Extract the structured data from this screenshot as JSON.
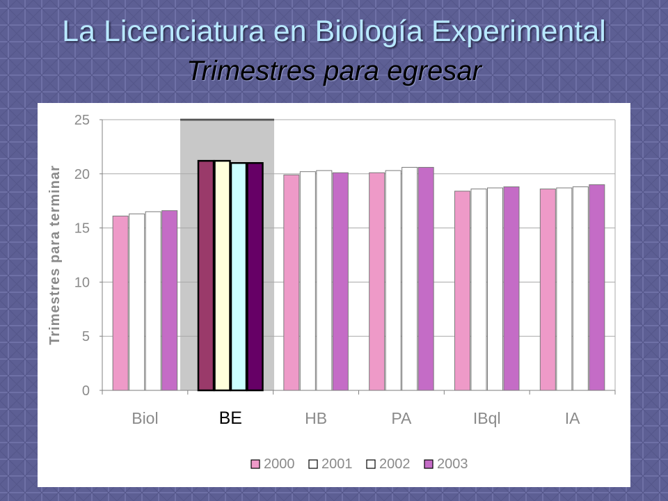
{
  "slide": {
    "title": "La Licenciatura en Biología Experimental",
    "subtitle": "Trimestres para egresar"
  },
  "colors": {
    "background": "#5d5f94",
    "title": "#b8e8ff",
    "highlight_band": "#c8c8c8",
    "series_2000": "#ee9ac8",
    "series_2001": "#ffffff",
    "series_2002": "#ffffff",
    "series_2003": "#c46cc6",
    "be_2000": "#9a3a6a",
    "be_2001": "#ffffdc",
    "be_2002": "#ccffff",
    "be_2003": "#660066"
  },
  "chart_data": {
    "type": "bar",
    "ylabel": "Trimestres para terminar",
    "xlabel": "",
    "ylim": [
      0,
      25
    ],
    "yticks": [
      "0",
      "5",
      "10",
      "15",
      "20",
      "25"
    ],
    "grid": true,
    "legend_position": "bottom",
    "highlighted_category": "BE",
    "categories": [
      "Biol",
      "BE",
      "HB",
      "PA",
      "IBql",
      "IA"
    ],
    "series": [
      {
        "name": "2000",
        "values": [
          16.1,
          21.2,
          19.9,
          20.1,
          18.4,
          18.6
        ]
      },
      {
        "name": "2001",
        "values": [
          16.3,
          21.2,
          20.2,
          20.3,
          18.6,
          18.7
        ]
      },
      {
        "name": "2002",
        "values": [
          16.5,
          21.0,
          20.3,
          20.6,
          18.7,
          18.8
        ]
      },
      {
        "name": "2003",
        "values": [
          16.6,
          21.0,
          20.1,
          20.6,
          18.8,
          19.0
        ]
      }
    ]
  }
}
